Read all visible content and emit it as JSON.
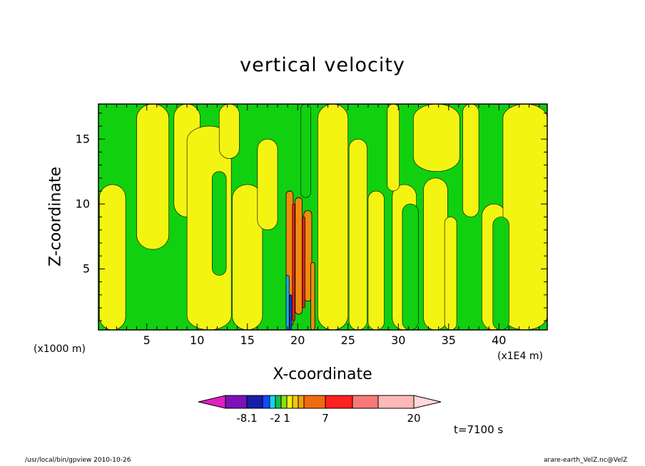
{
  "chart_data": {
    "type": "heatmap",
    "title": "vertical velocity",
    "xlabel": "X-coordinate",
    "ylabel": "Z-coordinate",
    "x_unit_left": "(x1000 m)",
    "x_unit_right": "(x1E4 m)",
    "xlim": [
      0.2,
      44.8
    ],
    "ylim": [
      0.3,
      17.7
    ],
    "x_ticks": [
      "5",
      "10",
      "15",
      "20",
      "25",
      "30",
      "35",
      "40"
    ],
    "x_tick_values": [
      5,
      10,
      15,
      20,
      25,
      30,
      35,
      40
    ],
    "y_ticks": [
      "5",
      "10",
      "15"
    ],
    "y_tick_values": [
      5,
      10,
      15
    ],
    "colorbar": {
      "colors": [
        "#e020c0",
        "#7a12b8",
        "#1520a8",
        "#1448ff",
        "#12d6f2",
        "#12c040",
        "#8ee010",
        "#f4f012",
        "#f0c814",
        "#f0a010",
        "#f06a10",
        "#ff2020",
        "#f87878",
        "#ffb8b8",
        "#ffd8d8"
      ],
      "labels": [
        {
          "text": "-8.1",
          "index": 1
        },
        {
          "text": "-2",
          "index": 4
        },
        {
          "text": "1",
          "index": 6
        },
        {
          "text": "7",
          "index": 10
        },
        {
          "text": "20",
          "index": 13
        }
      ]
    },
    "field_colors": {
      "green": "#10d010",
      "yellow": "#f4f412",
      "orange": "#f08a10",
      "red": "#ff2020",
      "cyan": "#12b0f0",
      "blue": "#1448ff"
    }
  },
  "annotations": {
    "time": "t=7100 s",
    "footer_left": "/usr/local/bin/gpview   2010-10-26",
    "footer_right": "arare-earth_VelZ.nc@VelZ"
  }
}
